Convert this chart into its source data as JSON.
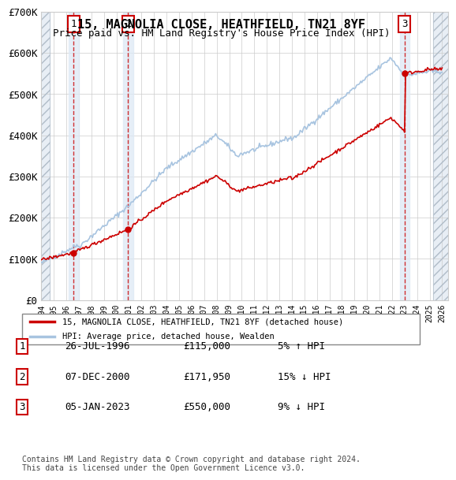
{
  "title": "15, MAGNOLIA CLOSE, HEATHFIELD, TN21 8YF",
  "subtitle": "Price paid vs. HM Land Registry's House Price Index (HPI)",
  "ylabel_ticks": [
    "£0",
    "£100K",
    "£200K",
    "£300K",
    "£400K",
    "£500K",
    "£600K",
    "£700K"
  ],
  "ytick_values": [
    0,
    100000,
    200000,
    300000,
    400000,
    500000,
    600000,
    700000
  ],
  "ylim": [
    0,
    700000
  ],
  "xlim_start": 1994.0,
  "xlim_end": 2026.5,
  "sale_dates": [
    1996.57,
    2000.93,
    2023.01
  ],
  "sale_prices": [
    115000,
    171950,
    550000
  ],
  "sale_labels": [
    "1",
    "2",
    "3"
  ],
  "legend_line1": "15, MAGNOLIA CLOSE, HEATHFIELD, TN21 8YF (detached house)",
  "legend_line2": "HPI: Average price, detached house, Wealden",
  "table_data": [
    [
      "1",
      "26-JUL-1996",
      "£115,000",
      "5% ↑ HPI"
    ],
    [
      "2",
      "07-DEC-2000",
      "£171,950",
      "15% ↓ HPI"
    ],
    [
      "3",
      "05-JAN-2023",
      "£550,000",
      "9% ↓ HPI"
    ]
  ],
  "footer": "Contains HM Land Registry data © Crown copyright and database right 2024.\nThis data is licensed under the Open Government Licence v3.0.",
  "hpi_color": "#a8c4e0",
  "price_color": "#cc0000",
  "hatch_color": "#d0d8e8",
  "background_hatch_color": "#e8eef5"
}
